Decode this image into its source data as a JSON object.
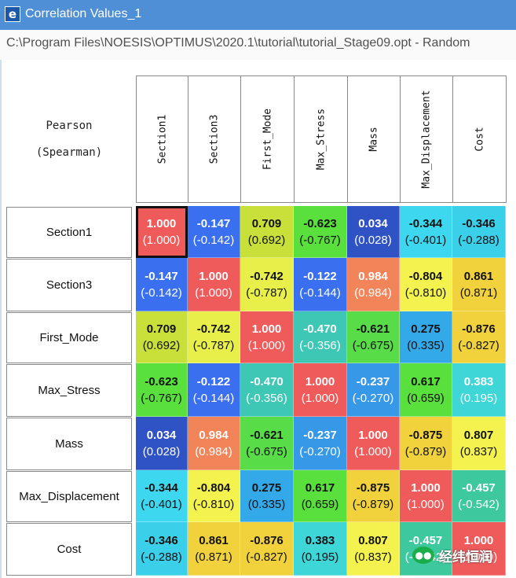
{
  "window": {
    "title": "Correlation Values_1",
    "icon": "app-logo-icon"
  },
  "path_text": "C:\\Program Files\\NOESIS\\OPTIMUS\\2020.1\\tutorial\\tutorial_Stage09.opt - Random",
  "corner": {
    "line1": "Pearson",
    "line2": "(Spearman)"
  },
  "columns": [
    "Section1",
    "Section3",
    "First_Mode",
    "Max_Stress",
    "Mass",
    "Max_Displacement",
    "Cost"
  ],
  "rows": [
    "Section1",
    "Section3",
    "First_Mode",
    "Max_Stress",
    "Mass",
    "Max_Displacement",
    "Cost"
  ],
  "pearson": [
    [
      "1.000",
      "-0.147",
      "0.709",
      "-0.623",
      "0.034",
      "-0.344",
      "-0.346"
    ],
    [
      "-0.147",
      "1.000",
      "-0.742",
      "-0.122",
      "0.984",
      "-0.804",
      "0.861"
    ],
    [
      "0.709",
      "-0.742",
      "1.000",
      "-0.470",
      "-0.621",
      "0.275",
      "-0.876"
    ],
    [
      "-0.623",
      "-0.122",
      "-0.470",
      "1.000",
      "-0.237",
      "0.617",
      "0.383"
    ],
    [
      "0.034",
      "0.984",
      "-0.621",
      "-0.237",
      "1.000",
      "-0.875",
      "0.807"
    ],
    [
      "-0.344",
      "-0.804",
      "0.275",
      "0.617",
      "-0.875",
      "1.000",
      "-0.457"
    ],
    [
      "-0.346",
      "0.861",
      "-0.876",
      "0.383",
      "0.807",
      "-0.457",
      "1.000"
    ]
  ],
  "spearman": [
    [
      "(1.000)",
      "(-0.142)",
      "(0.692)",
      "(-0.767)",
      "(0.028)",
      "(-0.401)",
      "(-0.288)"
    ],
    [
      "(-0.142)",
      "(1.000)",
      "(-0.787)",
      "(-0.144)",
      "(0.984)",
      "(-0.810)",
      "(0.871)"
    ],
    [
      "(0.692)",
      "(-0.787)",
      "(1.000)",
      "(-0.356)",
      "(-0.675)",
      "(0.335)",
      "(-0.827)"
    ],
    [
      "(-0.767)",
      "(-0.144)",
      "(-0.356)",
      "(1.000)",
      "(-0.270)",
      "(0.659)",
      "(0.195)"
    ],
    [
      "(0.028)",
      "(0.984)",
      "(-0.675)",
      "(-0.270)",
      "(1.000)",
      "(-0.879)",
      "(0.837)"
    ],
    [
      "(-0.401)",
      "(-0.810)",
      "(0.335)",
      "(0.659)",
      "(-0.879)",
      "(1.000)",
      "(-0.542)"
    ],
    [
      "(-0.288)",
      "(0.871)",
      "(-0.827)",
      "(0.195)",
      "(0.837)",
      "(-0.542)",
      "(1.000)"
    ]
  ],
  "cell_colors": [
    [
      "#ef5b5b",
      "#3a70f0",
      "#c9df3a",
      "#59e03c",
      "#2f52c4",
      "#3dd8f0",
      "#3ad0ea"
    ],
    [
      "#3a70f0",
      "#ef5b5b",
      "#e8ef4a",
      "#3a70f0",
      "#f2845a",
      "#f3f24e",
      "#f1d23c"
    ],
    [
      "#c9df3a",
      "#e8ef4a",
      "#ef5b5b",
      "#3fc7b6",
      "#58dc48",
      "#33a9ea",
      "#f1d23c"
    ],
    [
      "#59e03c",
      "#3a70f0",
      "#3fc7b6",
      "#ef5b5b",
      "#3898e8",
      "#59e03c",
      "#3fd6d8"
    ],
    [
      "#2f52c4",
      "#f2845a",
      "#58dc48",
      "#3898e8",
      "#ef5b5b",
      "#f1d23c",
      "#f3f24e"
    ],
    [
      "#3dd8f0",
      "#f3f24e",
      "#33a9ea",
      "#59e03c",
      "#f1d23c",
      "#ef5b5b",
      "#3ec89e"
    ],
    [
      "#3ad0ea",
      "#f1d23c",
      "#f1d23c",
      "#3fd6d8",
      "#f3f24e",
      "#3ec89e",
      "#ef5b5b"
    ]
  ],
  "white_text_cells": [
    [
      true,
      true,
      false,
      false,
      true,
      false,
      false
    ],
    [
      true,
      true,
      false,
      true,
      true,
      false,
      false
    ],
    [
      false,
      false,
      true,
      true,
      false,
      false,
      false
    ],
    [
      false,
      true,
      true,
      true,
      true,
      false,
      true
    ],
    [
      true,
      true,
      false,
      true,
      true,
      false,
      false
    ],
    [
      false,
      false,
      false,
      false,
      false,
      true,
      true
    ],
    [
      false,
      false,
      false,
      false,
      false,
      true,
      true
    ]
  ],
  "selected_cell": {
    "row": 0,
    "col": 0
  },
  "watermark": {
    "text": "经纬恒润",
    "icon": "wechat-icon"
  }
}
